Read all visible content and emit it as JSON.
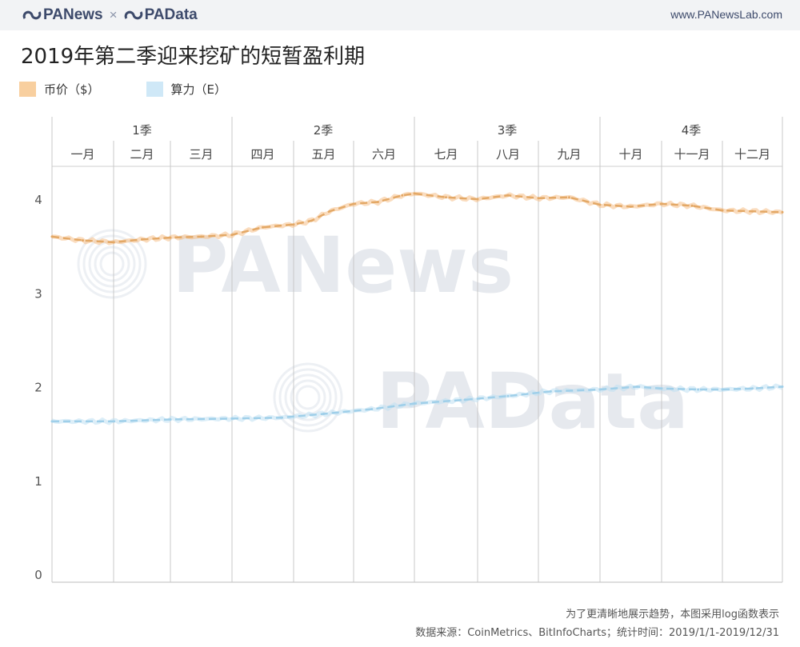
{
  "header": {
    "brand_left": "PANews",
    "brand_times": "×",
    "brand_right": "PAData",
    "site": "www.PANewsLab.com"
  },
  "chart_data": {
    "type": "line",
    "title": "2019年第二季迎来挖矿的短暂盈利期",
    "quarters": [
      "1季",
      "2季",
      "3季",
      "4季"
    ],
    "months": [
      "一月",
      "二月",
      "三月",
      "四月",
      "五月",
      "六月",
      "七月",
      "八月",
      "九月",
      "十月",
      "十一月",
      "十二月"
    ],
    "ylim": [
      0,
      4.35
    ],
    "yticks": [
      0,
      1,
      2,
      3,
      4
    ],
    "grid": "vertical month lines",
    "legend_position": "top-left",
    "watermarks": [
      "PANews",
      "PAData"
    ],
    "series": [
      {
        "name": "币价（$）",
        "color": "#f5c089",
        "x_month": [
          0,
          0.5,
          1.0,
          1.5,
          2.0,
          2.5,
          3.0,
          3.5,
          4.0,
          4.3,
          4.6,
          5.0,
          5.4,
          5.8,
          6.0,
          6.5,
          7.0,
          7.5,
          8.0,
          8.5,
          9.0,
          9.5,
          10.0,
          10.5,
          11.0,
          11.5,
          12.0
        ],
        "values": [
          3.6,
          3.56,
          3.54,
          3.57,
          3.59,
          3.6,
          3.62,
          3.7,
          3.73,
          3.77,
          3.87,
          3.95,
          3.97,
          4.04,
          4.06,
          4.02,
          4.0,
          4.04,
          4.01,
          4.02,
          3.94,
          3.92,
          3.95,
          3.93,
          3.88,
          3.87,
          3.86
        ]
      },
      {
        "name": "算力（E）",
        "color": "#bfe0f3",
        "x_month": [
          0,
          1,
          2,
          3,
          3.8,
          4.5,
          5.3,
          6.0,
          6.8,
          7.5,
          8.2,
          9.0,
          9.6,
          10.0,
          10.6,
          11.0,
          11.5,
          12.0
        ],
        "values": [
          1.63,
          1.63,
          1.65,
          1.66,
          1.67,
          1.71,
          1.76,
          1.82,
          1.86,
          1.9,
          1.95,
          1.97,
          2.0,
          1.98,
          1.97,
          1.97,
          1.98,
          2.0
        ]
      }
    ],
    "note": "为了更清晰地展示趋势，本图采用log函数表示",
    "source": "数据来源：CoinMetrics、BitInfoCharts；统计时间：2019/1/1-2019/12/31"
  }
}
